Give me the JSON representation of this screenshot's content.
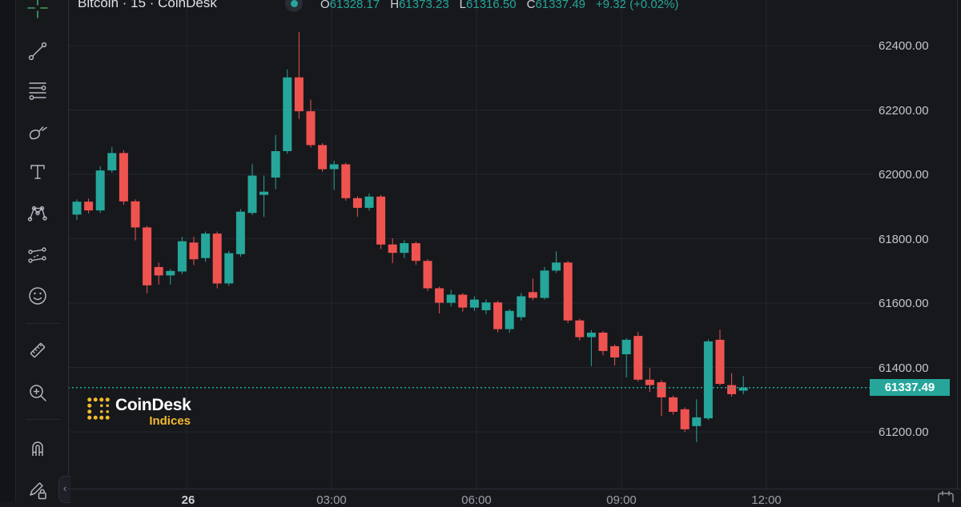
{
  "header": {
    "symbol_title": "Bitcoin · 15 · CoinDesk",
    "ohlc": {
      "o_label": "O",
      "o": "61328.17",
      "h_label": "H",
      "h": "61373.23",
      "l_label": "L",
      "l": "61316.50",
      "c_label": "C",
      "c": "61337.49",
      "change": "+9.32 (+0.02%)"
    }
  },
  "toolbar": {
    "collapse_glyph": "‹",
    "icons": [
      "crosshair-icon",
      "trend-line-icon",
      "fib-retracement-icon",
      "brush-icon",
      "text-icon",
      "xabcd-pattern-icon",
      "forecast-icon",
      "emoji-icon",
      "measure-icon",
      "zoom-in-icon",
      "magnet-icon",
      "draw-lock-icon",
      "calendar-icon"
    ]
  },
  "price_axis": {
    "labels": [
      "62400.00",
      "62200.00",
      "62000.00",
      "61800.00",
      "61600.00",
      "61400.00",
      "61200.00"
    ],
    "price_tag": "61337.49"
  },
  "time_axis": {
    "labels": [
      {
        "text": "26",
        "emphasis": true
      },
      {
        "text": "03:00",
        "emphasis": false
      },
      {
        "text": "06:00",
        "emphasis": false
      },
      {
        "text": "09:00",
        "emphasis": false
      },
      {
        "text": "12:00",
        "emphasis": false
      }
    ]
  },
  "watermark": {
    "title": "CoinDesk",
    "subtitle": "Indices"
  },
  "colors": {
    "up": "#26a69a",
    "down": "#ef5350",
    "price_tag_bg": "#26a69a",
    "watermark_gold": "#f3ba2f",
    "grid": "#22262e",
    "crosshair_green": "#3da65c"
  },
  "chart_data": {
    "type": "candlestick",
    "title": "Bitcoin",
    "interval_minutes": 15,
    "source": "CoinDesk",
    "current_price": 61337.49,
    "current_candle": {
      "open": 61328.17,
      "high": 61373.23,
      "low": 61316.5,
      "close": 61337.49,
      "change": 9.32,
      "change_pct": 0.02
    },
    "y_axis": {
      "min": 61100,
      "max": 62500,
      "gridline_step": 200
    },
    "price_gridlines": [
      62400,
      62200,
      62000,
      61800,
      61600,
      61400,
      61200
    ],
    "time_gridlines": [
      "26",
      "03:00",
      "06:00",
      "09:00",
      "12:00"
    ],
    "legend_position": "top-left",
    "grid": true,
    "candles_ohlc": [
      [
        61875,
        61922,
        61858,
        61915
      ],
      [
        61915,
        61925,
        61878,
        61888
      ],
      [
        61888,
        62025,
        61880,
        62012
      ],
      [
        62012,
        62085,
        62005,
        62066
      ],
      [
        62066,
        62075,
        61905,
        61916
      ],
      [
        61916,
        61922,
        61795,
        61835
      ],
      [
        61835,
        61840,
        61630,
        61655
      ],
      [
        61712,
        61726,
        61658,
        61686
      ],
      [
        61686,
        61706,
        61658,
        61700
      ],
      [
        61698,
        61806,
        61690,
        61792
      ],
      [
        61788,
        61806,
        61718,
        61736
      ],
      [
        61740,
        61822,
        61728,
        61816
      ],
      [
        61816,
        61822,
        61646,
        61661
      ],
      [
        61661,
        61762,
        61654,
        61755
      ],
      [
        61752,
        61892,
        61744,
        61884
      ],
      [
        61880,
        62032,
        61874,
        61996
      ],
      [
        61936,
        61996,
        61868,
        61946
      ],
      [
        61990,
        62122,
        61954,
        62072
      ],
      [
        62072,
        62326,
        62064,
        62301
      ],
      [
        62301,
        62442,
        62172,
        62196
      ],
      [
        62196,
        62232,
        62083,
        62091
      ],
      [
        62091,
        62097,
        62008,
        62016
      ],
      [
        62016,
        62042,
        61951,
        62031
      ],
      [
        62031,
        62036,
        61918,
        61926
      ],
      [
        61926,
        61932,
        61868,
        61896
      ],
      [
        61896,
        61941,
        61888,
        61931
      ],
      [
        61931,
        61936,
        61768,
        61782
      ],
      [
        61782,
        61801,
        61724,
        61756
      ],
      [
        61756,
        61796,
        61740,
        61786
      ],
      [
        61786,
        61791,
        61719,
        61731
      ],
      [
        61731,
        61736,
        61638,
        61646
      ],
      [
        61646,
        61651,
        61568,
        61601
      ],
      [
        61601,
        61641,
        61589,
        61626
      ],
      [
        61626,
        61631,
        61574,
        61586
      ],
      [
        61586,
        61621,
        61576,
        61611
      ],
      [
        61578,
        61612,
        61566,
        61602
      ],
      [
        61602,
        61607,
        61509,
        61519
      ],
      [
        61519,
        61581,
        61508,
        61576
      ],
      [
        61556,
        61631,
        61546,
        61621
      ],
      [
        61634,
        61676,
        61609,
        61616
      ],
      [
        61616,
        61712,
        61611,
        61701
      ],
      [
        61701,
        61761,
        61694,
        61726
      ],
      [
        61726,
        61731,
        61538,
        61546
      ],
      [
        61546,
        61551,
        61484,
        61494
      ],
      [
        61494,
        61516,
        61404,
        61508
      ],
      [
        61508,
        61513,
        61438,
        61451
      ],
      [
        61466,
        61471,
        61406,
        61431
      ],
      [
        61441,
        61491,
        61369,
        61486
      ],
      [
        61498,
        61511,
        61356,
        61362
      ],
      [
        61362,
        61399,
        61324,
        61345
      ],
      [
        61354,
        61361,
        61249,
        61307
      ],
      [
        61307,
        61313,
        61254,
        61262
      ],
      [
        61270,
        61276,
        61199,
        61208
      ],
      [
        61218,
        61301,
        61168,
        61245
      ],
      [
        61242,
        61487,
        61237,
        61481
      ],
      [
        61486,
        61517,
        61344,
        61349
      ],
      [
        61345,
        61382,
        61309,
        61317
      ],
      [
        61328.17,
        61373.23,
        61316.5,
        61337.49
      ]
    ]
  }
}
